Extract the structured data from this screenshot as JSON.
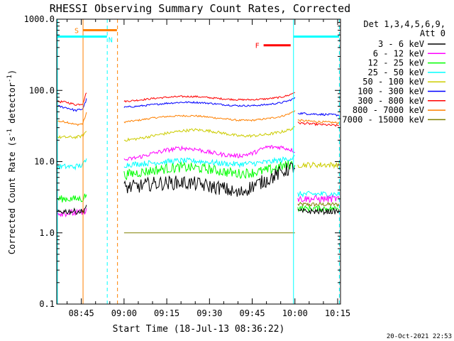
{
  "chart_data": {
    "type": "line",
    "title": "RHESSI Observing Summary Count Rates, Corrected",
    "xlabel": "Start Time (18-Jul-13 08:36:22)",
    "ylabel_main": "Corrected Count Rate (s",
    "ylabel_sup1": "-1",
    "ylabel_mid": " detector",
    "ylabel_sup2": "-1",
    "ylabel_end": ")",
    "y_scale": "log",
    "ylim": [
      0.1,
      1000
    ],
    "y_ticks": [
      {
        "value": 1000,
        "label": "1000.0"
      },
      {
        "value": 100,
        "label": "100.0"
      },
      {
        "value": 10,
        "label": "10.0"
      },
      {
        "value": 1,
        "label": "1.0"
      },
      {
        "value": 0.1,
        "label": "0.1"
      }
    ],
    "xlim_minutes": [
      36.37,
      136
    ],
    "x_ticks": [
      {
        "value": 45,
        "label": "08:45"
      },
      {
        "value": 60,
        "label": "09:00"
      },
      {
        "value": 75,
        "label": "09:15"
      },
      {
        "value": 90,
        "label": "09:30"
      },
      {
        "value": 105,
        "label": "09:45"
      },
      {
        "value": 120,
        "label": "10:00"
      },
      {
        "value": 135,
        "label": "10:15"
      }
    ],
    "legend": {
      "header1": "Det 1,3,4,5,6,9,",
      "header2": "Att 0",
      "placement": "right"
    },
    "series": [
      {
        "name": "3 - 6 keV",
        "color": "#000000",
        "segments": [
          {
            "x": [
              36.5,
              40,
              43,
              45.5,
              46.8
            ],
            "y": [
              2.0,
              2.0,
              2.0,
              2.0,
              2.4
            ],
            "noise": 0.04
          },
          {
            "x": [
              60,
              65,
              70,
              75,
              80,
              85,
              90,
              95,
              100,
              105,
              110,
              115,
              118,
              120
            ],
            "y": [
              4.3,
              4.5,
              4.9,
              5.0,
              5.1,
              4.9,
              4.5,
              4.2,
              3.5,
              4.5,
              5.5,
              7.0,
              8.0,
              8.5
            ],
            "noise": 0.1
          },
          {
            "x": [
              121,
              125,
              130,
              135.5
            ],
            "y": [
              2.0,
              2.0,
              2.0,
              2.0
            ],
            "noise": 0.04
          }
        ]
      },
      {
        "name": "6 - 12 keV",
        "color": "#ff00ff",
        "segments": [
          {
            "x": [
              36.5,
              40,
              43,
              45.5,
              46.8
            ],
            "y": [
              1.9,
              1.9,
              1.9,
              1.9,
              2.2
            ],
            "noise": 0.05
          },
          {
            "x": [
              60,
              65,
              70,
              75,
              80,
              85,
              90,
              95,
              100,
              105,
              110,
              115,
              118,
              120
            ],
            "y": [
              10.5,
              11.5,
              13.0,
              14.5,
              15.5,
              15.0,
              13.5,
              12.5,
              12.0,
              13.0,
              16.0,
              16.0,
              15.0,
              14.0
            ],
            "noise": 0.03
          },
          {
            "x": [
              121,
              125,
              130,
              135.5
            ],
            "y": [
              3.0,
              3.0,
              3.0,
              3.0
            ],
            "noise": 0.05
          }
        ]
      },
      {
        "name": "12 - 25 keV",
        "color": "#00ff00",
        "segments": [
          {
            "x": [
              36.5,
              40,
              43,
              45.5,
              46.8
            ],
            "y": [
              3.0,
              3.0,
              3.0,
              3.0,
              3.5
            ],
            "noise": 0.05
          },
          {
            "x": [
              60,
              65,
              70,
              75,
              80,
              85,
              90,
              95,
              100,
              105,
              110,
              115,
              118,
              120
            ],
            "y": [
              6.5,
              7.0,
              7.5,
              8.0,
              8.3,
              8.2,
              7.8,
              7.2,
              6.8,
              7.0,
              7.5,
              8.5,
              9.0,
              9.5
            ],
            "noise": 0.07
          },
          {
            "x": [
              121,
              125,
              130,
              135.5
            ],
            "y": [
              2.2,
              2.2,
              2.2,
              2.2
            ],
            "noise": 0.04
          }
        ]
      },
      {
        "name": "25 - 50 keV",
        "color": "#00ffff",
        "segments": [
          {
            "x": [
              36.5,
              40,
              43,
              45.5,
              46.8
            ],
            "y": [
              8.5,
              8.5,
              8.5,
              9.0,
              10.5
            ],
            "noise": 0.04
          },
          {
            "x": [
              60,
              65,
              70,
              75,
              80,
              85,
              90,
              95,
              100,
              105,
              110,
              115,
              118,
              120
            ],
            "y": [
              9.0,
              9.3,
              9.6,
              10.0,
              10.3,
              10.2,
              9.8,
              9.4,
              9.2,
              9.4,
              9.8,
              10.5,
              11.0,
              11.5
            ],
            "noise": 0.04
          },
          {
            "x": [
              121,
              125,
              130,
              135.5
            ],
            "y": [
              3.5,
              3.5,
              3.5,
              3.5
            ],
            "noise": 0.04
          }
        ]
      },
      {
        "name": "50 - 100 keV",
        "color": "#cccc00",
        "segments": [
          {
            "x": [
              36.5,
              40,
              43,
              45.5,
              46.8
            ],
            "y": [
              22,
              22,
              22,
              23,
              27
            ],
            "noise": 0.02
          },
          {
            "x": [
              60,
              65,
              70,
              75,
              80,
              85,
              90,
              95,
              100,
              105,
              110,
              115,
              118,
              120
            ],
            "y": [
              20,
              21,
              23,
              25,
              27,
              28,
              27,
              25,
              23,
              23,
              24,
              26,
              28,
              30
            ],
            "noise": 0.02
          },
          {
            "x": [
              121,
              125,
              130,
              135.5
            ],
            "y": [
              9.0,
              9.0,
              9.0,
              9.0
            ],
            "noise": 0.04
          }
        ]
      },
      {
        "name": "100 - 300 keV",
        "color": "#0000ff",
        "segments": [
          {
            "x": [
              36.5,
              40,
              43,
              45.5,
              46.8
            ],
            "y": [
              60,
              57,
              52,
              55,
              75
            ],
            "noise": 0.015
          },
          {
            "x": [
              60,
              65,
              70,
              75,
              80,
              85,
              90,
              95,
              100,
              105,
              110,
              115,
              118,
              120
            ],
            "y": [
              58,
              60,
              63,
              66,
              68,
              68,
              66,
              63,
              61,
              61,
              63,
              67,
              72,
              78
            ],
            "noise": 0.012
          },
          {
            "x": [
              121,
              125,
              130,
              135.5
            ],
            "y": [
              48,
              47,
              46,
              45
            ],
            "noise": 0.015
          }
        ]
      },
      {
        "name": "300 - 800 keV",
        "color": "#ff0000",
        "segments": [
          {
            "x": [
              36.5,
              40,
              43,
              45.5,
              46.8
            ],
            "y": [
              70,
              68,
              63,
              65,
              95
            ],
            "noise": 0.015
          },
          {
            "x": [
              60,
              65,
              70,
              75,
              80,
              85,
              90,
              95,
              100,
              105,
              110,
              115,
              118,
              120
            ],
            "y": [
              70,
              73,
              77,
              80,
              82,
              82,
              79,
              76,
              74,
              74,
              76,
              80,
              86,
              95
            ],
            "noise": 0.012
          },
          {
            "x": [
              121,
              125,
              130,
              135.5
            ],
            "y": [
              35,
              34,
              33,
              32
            ],
            "noise": 0.015
          }
        ]
      },
      {
        "name": "800 - 7000 keV",
        "color": "#ff8000",
        "segments": [
          {
            "x": [
              36.5,
              40,
              43,
              45.5,
              46.8
            ],
            "y": [
              37,
              36,
              33,
              34,
              48
            ],
            "noise": 0.015
          },
          {
            "x": [
              60,
              65,
              70,
              75,
              80,
              85,
              90,
              95,
              100,
              105,
              110,
              115,
              118,
              120
            ],
            "y": [
              36,
              38,
              41,
              43,
              44,
              44,
              42,
              40,
              38,
              38,
              40,
              43,
              47,
              52
            ],
            "noise": 0.012
          },
          {
            "x": [
              121,
              125,
              130,
              135.5
            ],
            "y": [
              38,
              37,
              36,
              35
            ],
            "noise": 0.015
          }
        ]
      },
      {
        "name": "7000 - 15000 keV",
        "color": "#808000",
        "segments": [
          {
            "x": [
              60,
              65,
              70,
              75,
              80,
              85,
              90,
              95,
              100,
              105,
              110,
              115,
              118,
              120
            ],
            "y": [
              1.0,
              1.0,
              1.0,
              1.0,
              1.0,
              1.0,
              1.0,
              1.0,
              1.0,
              1.0,
              1.0,
              1.0,
              1.0,
              1.0
            ],
            "noise": 0.0
          },
          {
            "x": [
              121,
              125,
              130,
              135.5
            ],
            "y": [
              2.5,
              2.5,
              2.5,
              2.5
            ],
            "noise": 0.03
          }
        ]
      }
    ],
    "annotations": [
      {
        "label": "S",
        "color": "#ff8000",
        "x0": 45.6,
        "x1": 57.5,
        "y": 700
      },
      {
        "label": "N",
        "color": "#00ffff",
        "x0": 36.5,
        "x1": 54,
        "y": 570
      },
      {
        "label": "F",
        "color": "#ff0000",
        "x0": 109,
        "x1": 118.5,
        "y": 430
      }
    ],
    "bars": [
      {
        "color": "#00ffff",
        "x0": 119.5,
        "x1": 135.5,
        "y": 570
      }
    ],
    "vlines": [
      {
        "x": 36.6,
        "color": "#00ffff",
        "style": "solid"
      },
      {
        "x": 45.6,
        "color": "#ff8000",
        "style": "solid"
      },
      {
        "x": 54.1,
        "color": "#00ffff",
        "style": "dashed"
      },
      {
        "x": 57.7,
        "color": "#ff8000",
        "style": "dashed"
      },
      {
        "x": 119.5,
        "color": "#00ffff",
        "style": "solid"
      },
      {
        "x": 135.6,
        "color": "#00ffff",
        "style": "dashed"
      }
    ],
    "grid": false
  },
  "footer_timestamp": "20-Oct-2021 22:53"
}
